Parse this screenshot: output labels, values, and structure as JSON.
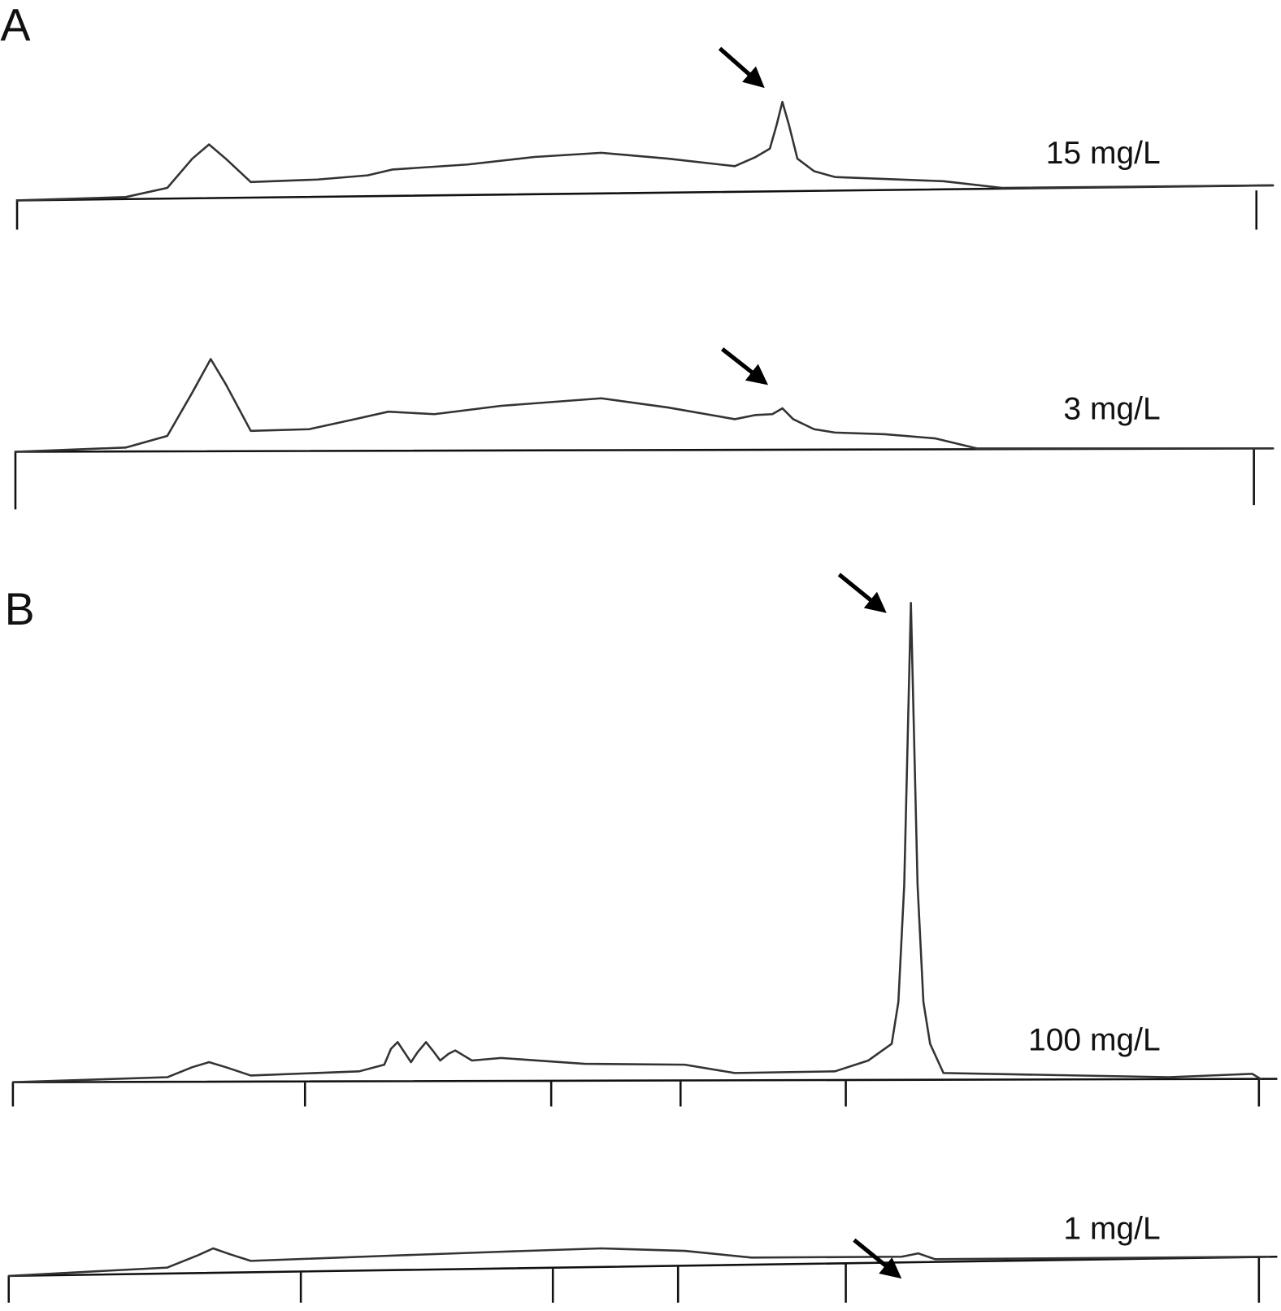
{
  "panels": [
    {
      "label": "A",
      "traces": [
        {
          "label": "15 mg/L"
        },
        {
          "label": "3 mg/L"
        }
      ]
    },
    {
      "label": "B",
      "traces": [
        {
          "label": "100 mg/L"
        },
        {
          "label": "1 mg/L"
        }
      ]
    }
  ]
}
